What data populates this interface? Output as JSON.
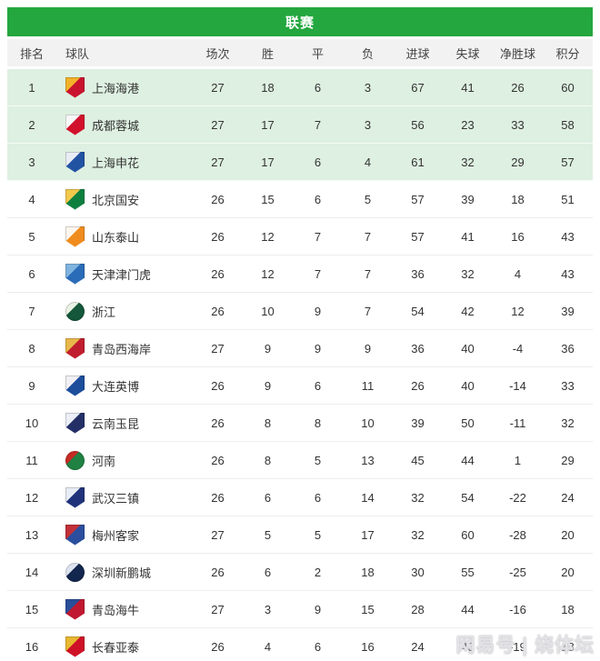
{
  "title_bar": {
    "label": "联赛"
  },
  "table": {
    "columns": [
      "排名",
      "球队",
      "场次",
      "胜",
      "平",
      "负",
      "进球",
      "失球",
      "净胜球",
      "积分"
    ],
    "rows": [
      {
        "rank": "1",
        "team": "上海海港",
        "played": "27",
        "win": "18",
        "draw": "6",
        "loss": "3",
        "goals_for": "67",
        "goals_against": "41",
        "goal_diff": "26",
        "points": "60",
        "highlighted": true,
        "crest": {
          "icon": "shanghai-port-crest-icon",
          "shape": "shield",
          "primary": "#c9132e",
          "secondary": "#f3b229"
        }
      },
      {
        "rank": "2",
        "team": "成都蓉城",
        "played": "27",
        "win": "17",
        "draw": "7",
        "loss": "3",
        "goals_for": "56",
        "goals_against": "23",
        "goal_diff": "33",
        "points": "58",
        "highlighted": true,
        "crest": {
          "icon": "chengdu-rongcheng-crest-icon",
          "shape": "shield",
          "primary": "#d2112c",
          "secondary": "#f7f7f7"
        }
      },
      {
        "rank": "3",
        "team": "上海申花",
        "played": "27",
        "win": "17",
        "draw": "6",
        "loss": "4",
        "goals_for": "61",
        "goals_against": "32",
        "goal_diff": "29",
        "points": "57",
        "highlighted": true,
        "crest": {
          "icon": "shanghai-shenhua-crest-icon",
          "shape": "shield",
          "primary": "#2253a3",
          "secondary": "#e8ecf5"
        }
      },
      {
        "rank": "4",
        "team": "北京国安",
        "played": "26",
        "win": "15",
        "draw": "6",
        "loss": "5",
        "goals_for": "57",
        "goals_against": "39",
        "goal_diff": "18",
        "points": "51",
        "highlighted": false,
        "crest": {
          "icon": "beijing-guoan-crest-icon",
          "shape": "shield",
          "primary": "#0d8040",
          "secondary": "#f2c94c"
        }
      },
      {
        "rank": "5",
        "team": "山东泰山",
        "played": "26",
        "win": "12",
        "draw": "7",
        "loss": "7",
        "goals_for": "57",
        "goals_against": "41",
        "goal_diff": "16",
        "points": "43",
        "highlighted": false,
        "crest": {
          "icon": "shandong-taishan-crest-icon",
          "shape": "shield",
          "primary": "#f08c1e",
          "secondary": "#fdf6ec"
        }
      },
      {
        "rank": "6",
        "team": "天津津门虎",
        "played": "26",
        "win": "12",
        "draw": "7",
        "loss": "7",
        "goals_for": "36",
        "goals_against": "32",
        "goal_diff": "4",
        "points": "43",
        "highlighted": false,
        "crest": {
          "icon": "tianjin-jinmen-tiger-crest-icon",
          "shape": "shield",
          "primary": "#2b6cb8",
          "secondary": "#7fb3e0"
        }
      },
      {
        "rank": "7",
        "team": "浙江",
        "played": "26",
        "win": "10",
        "draw": "9",
        "loss": "7",
        "goals_for": "54",
        "goals_against": "42",
        "goal_diff": "12",
        "points": "39",
        "highlighted": false,
        "crest": {
          "icon": "zhejiang-crest-icon",
          "shape": "circle",
          "primary": "#14573a",
          "secondary": "#e9f2e4"
        }
      },
      {
        "rank": "8",
        "team": "青岛西海岸",
        "played": "27",
        "win": "9",
        "draw": "9",
        "loss": "9",
        "goals_for": "36",
        "goals_against": "40",
        "goal_diff": "-4",
        "points": "36",
        "highlighted": false,
        "crest": {
          "icon": "qingdao-west-coast-crest-icon",
          "shape": "shield",
          "primary": "#c01e2e",
          "secondary": "#e8b84b"
        }
      },
      {
        "rank": "9",
        "team": "大连英博",
        "played": "26",
        "win": "9",
        "draw": "6",
        "loss": "11",
        "goals_for": "26",
        "goals_against": "40",
        "goal_diff": "-14",
        "points": "33",
        "highlighted": false,
        "crest": {
          "icon": "dalian-yingbo-crest-icon",
          "shape": "shield",
          "primary": "#1c4e9c",
          "secondary": "#f0f0f5"
        }
      },
      {
        "rank": "10",
        "team": "云南玉昆",
        "played": "26",
        "win": "8",
        "draw": "8",
        "loss": "10",
        "goals_for": "39",
        "goals_against": "50",
        "goal_diff": "-11",
        "points": "32",
        "highlighted": false,
        "crest": {
          "icon": "yunnan-yukun-crest-icon",
          "shape": "shield",
          "primary": "#232f66",
          "secondary": "#eceef8"
        }
      },
      {
        "rank": "11",
        "team": "河南",
        "played": "26",
        "win": "8",
        "draw": "5",
        "loss": "13",
        "goals_for": "45",
        "goals_against": "44",
        "goal_diff": "1",
        "points": "29",
        "highlighted": false,
        "crest": {
          "icon": "henan-crest-icon",
          "shape": "circle",
          "primary": "#1f8243",
          "secondary": "#c42b23"
        }
      },
      {
        "rank": "12",
        "team": "武汉三镇",
        "played": "26",
        "win": "6",
        "draw": "6",
        "loss": "14",
        "goals_for": "32",
        "goals_against": "54",
        "goal_diff": "-22",
        "points": "24",
        "highlighted": false,
        "crest": {
          "icon": "wuhan-three-towns-crest-icon",
          "shape": "shield",
          "primary": "#20337a",
          "secondary": "#e8ecf5"
        }
      },
      {
        "rank": "13",
        "team": "梅州客家",
        "played": "27",
        "win": "5",
        "draw": "5",
        "loss": "17",
        "goals_for": "32",
        "goals_against": "60",
        "goal_diff": "-28",
        "points": "20",
        "highlighted": false,
        "crest": {
          "icon": "meizhou-hakka-crest-icon",
          "shape": "shield",
          "primary": "#2b4f9e",
          "secondary": "#c23038"
        }
      },
      {
        "rank": "14",
        "team": "深圳新鹏城",
        "played": "26",
        "win": "6",
        "draw": "2",
        "loss": "18",
        "goals_for": "30",
        "goals_against": "55",
        "goal_diff": "-25",
        "points": "20",
        "highlighted": false,
        "crest": {
          "icon": "shenzhen-peng-city-crest-icon",
          "shape": "circle",
          "primary": "#13264e",
          "secondary": "#dde4f0"
        }
      },
      {
        "rank": "15",
        "team": "青岛海牛",
        "played": "27",
        "win": "3",
        "draw": "9",
        "loss": "15",
        "goals_for": "28",
        "goals_against": "44",
        "goal_diff": "-16",
        "points": "18",
        "highlighted": false,
        "crest": {
          "icon": "qingdao-hainiu-crest-icon",
          "shape": "shield",
          "primary": "#c01830",
          "secondary": "#2a4f9a"
        }
      },
      {
        "rank": "16",
        "team": "长春亚泰",
        "played": "26",
        "win": "4",
        "draw": "6",
        "loss": "16",
        "goals_for": "24",
        "goals_against": "43",
        "goal_diff": "-19",
        "points": "18",
        "highlighted": false,
        "crest": {
          "icon": "changchun-yatai-crest-icon",
          "shape": "shield",
          "primary": "#ce1126",
          "secondary": "#e8b830"
        }
      }
    ]
  },
  "watermark": {
    "text": "网易号 | 烧体坛"
  },
  "colors": {
    "header_green": "#24a73e",
    "highlight_row_bg": "#def0e1",
    "column_header_bg": "#f2f2f3",
    "row_border": "#ededed",
    "text_primary": "#333333",
    "watermark_color": "#e3e3e6"
  }
}
